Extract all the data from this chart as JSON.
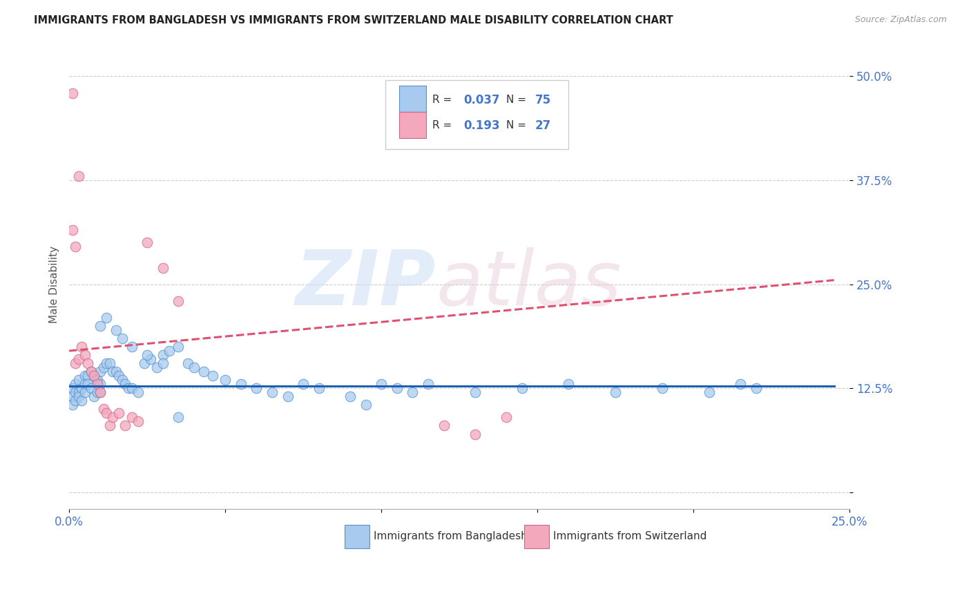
{
  "title": "IMMIGRANTS FROM BANGLADESH VS IMMIGRANTS FROM SWITZERLAND MALE DISABILITY CORRELATION CHART",
  "source": "Source: ZipAtlas.com",
  "ylabel": "Male Disability",
  "xlim": [
    0.0,
    0.25
  ],
  "ylim": [
    -0.02,
    0.52
  ],
  "xticks": [
    0.0,
    0.05,
    0.1,
    0.15,
    0.2,
    0.25
  ],
  "xticklabels": [
    "0.0%",
    "",
    "",
    "",
    "",
    "25.0%"
  ],
  "yticks": [
    0.0,
    0.125,
    0.25,
    0.375,
    0.5
  ],
  "yticklabels": [
    "",
    "12.5%",
    "25.0%",
    "37.5%",
    "50.0%"
  ],
  "label1": "Immigrants from Bangladesh",
  "label2": "Immigrants from Switzerland",
  "color1": "#a8caee",
  "color2": "#f4a8bc",
  "edge1": "#5590cc",
  "edge2": "#cc6688",
  "trendline1_color": "#1a5fb4",
  "trendline2_color": "#e05070",
  "grid_color": "#cccccc",
  "tick_color": "#4477cc",
  "blue_x": [
    0.001,
    0.001,
    0.001,
    0.002,
    0.002,
    0.002,
    0.003,
    0.003,
    0.003,
    0.004,
    0.004,
    0.005,
    0.005,
    0.005,
    0.006,
    0.006,
    0.007,
    0.007,
    0.008,
    0.008,
    0.009,
    0.009,
    0.01,
    0.01,
    0.01,
    0.011,
    0.012,
    0.013,
    0.014,
    0.015,
    0.016,
    0.017,
    0.018,
    0.019,
    0.02,
    0.022,
    0.024,
    0.026,
    0.028,
    0.03,
    0.032,
    0.035,
    0.038,
    0.04,
    0.043,
    0.046,
    0.05,
    0.055,
    0.06,
    0.065,
    0.07,
    0.075,
    0.08,
    0.09,
    0.095,
    0.1,
    0.105,
    0.11,
    0.115,
    0.13,
    0.145,
    0.16,
    0.175,
    0.19,
    0.205,
    0.215,
    0.22,
    0.01,
    0.012,
    0.015,
    0.017,
    0.02,
    0.025,
    0.03,
    0.035
  ],
  "blue_y": [
    0.125,
    0.115,
    0.105,
    0.13,
    0.12,
    0.11,
    0.135,
    0.12,
    0.115,
    0.125,
    0.11,
    0.14,
    0.13,
    0.12,
    0.14,
    0.13,
    0.145,
    0.125,
    0.14,
    0.115,
    0.135,
    0.12,
    0.145,
    0.13,
    0.12,
    0.15,
    0.155,
    0.155,
    0.145,
    0.145,
    0.14,
    0.135,
    0.13,
    0.125,
    0.125,
    0.12,
    0.155,
    0.16,
    0.15,
    0.165,
    0.17,
    0.175,
    0.155,
    0.15,
    0.145,
    0.14,
    0.135,
    0.13,
    0.125,
    0.12,
    0.115,
    0.13,
    0.125,
    0.115,
    0.105,
    0.13,
    0.125,
    0.12,
    0.13,
    0.12,
    0.125,
    0.13,
    0.12,
    0.125,
    0.12,
    0.13,
    0.125,
    0.2,
    0.21,
    0.195,
    0.185,
    0.175,
    0.165,
    0.155,
    0.09
  ],
  "pink_x": [
    0.001,
    0.001,
    0.002,
    0.002,
    0.003,
    0.003,
    0.004,
    0.005,
    0.006,
    0.007,
    0.008,
    0.009,
    0.01,
    0.011,
    0.012,
    0.013,
    0.014,
    0.016,
    0.018,
    0.02,
    0.022,
    0.025,
    0.03,
    0.035,
    0.12,
    0.13,
    0.14
  ],
  "pink_y": [
    0.48,
    0.315,
    0.295,
    0.155,
    0.38,
    0.16,
    0.175,
    0.165,
    0.155,
    0.145,
    0.14,
    0.13,
    0.12,
    0.1,
    0.095,
    0.08,
    0.09,
    0.095,
    0.08,
    0.09,
    0.085,
    0.3,
    0.27,
    0.23,
    0.08,
    0.07,
    0.09
  ],
  "trend1_x0": 0.0,
  "trend1_y0": 0.128,
  "trend1_x1": 0.245,
  "trend1_y1": 0.128,
  "trend2_x0": 0.0,
  "trend2_y0": 0.17,
  "trend2_x1": 0.245,
  "trend2_y1": 0.255
}
